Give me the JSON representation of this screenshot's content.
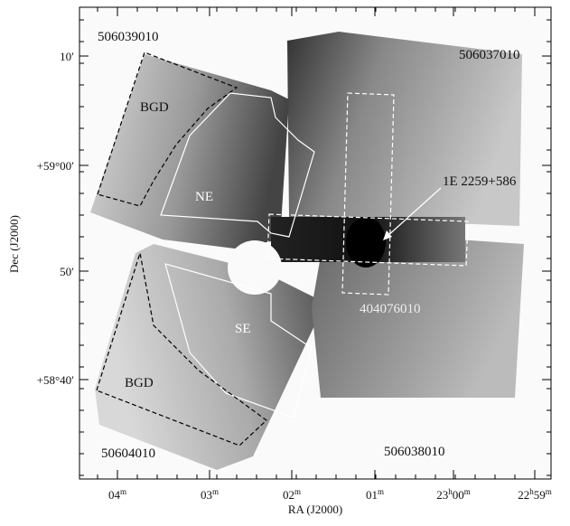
{
  "figure": {
    "x_axis": {
      "label": "RA (J2000)",
      "ticks": [
        [
          {
            "text": "04"
          },
          {
            "sup": "m"
          }
        ],
        [
          {
            "text": "03"
          },
          {
            "sup": "m"
          }
        ],
        [
          {
            "text": "02"
          },
          {
            "sup": "m"
          }
        ],
        [
          {
            "text": "01"
          },
          {
            "sup": "m"
          }
        ],
        [
          {
            "text": "23"
          },
          {
            "sup": "h"
          },
          {
            "text": "00"
          },
          {
            "sup": "m"
          }
        ],
        [
          {
            "text": "22"
          },
          {
            "sup": "h"
          },
          {
            "text": "59"
          },
          {
            "sup": "m"
          }
        ]
      ]
    },
    "y_axis": {
      "label": "Dec (J2000)",
      "ticks": [
        "10′",
        "+59°00′",
        "50′",
        "+58°40′"
      ]
    },
    "annotations": {
      "obs_top_left": "506039010",
      "obs_top_right": "506037010",
      "obs_bottom_left": "50604010",
      "obs_bottom_right": "506038010",
      "obs_center": "404076010",
      "bgd_top": "BGD",
      "bgd_bottom": "BGD",
      "region_ne": "NE",
      "region_se": "SE",
      "source": "1E 2259+586"
    }
  }
}
